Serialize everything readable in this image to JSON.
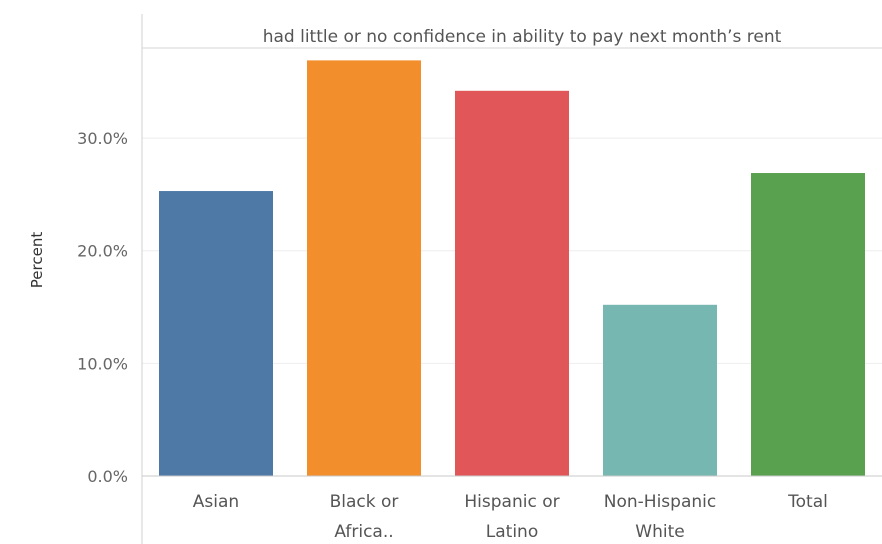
{
  "chart_data": {
    "type": "bar",
    "header": "had little or no confidence in ability to pay next month’s rent",
    "ylabel": "Percent",
    "ylim": [
      0,
      38
    ],
    "yticks": [
      {
        "value": 0,
        "label": "0.0%"
      },
      {
        "value": 10,
        "label": "10.0%"
      },
      {
        "value": 20,
        "label": "20.0%"
      },
      {
        "value": 30,
        "label": "30.0%"
      }
    ],
    "categories": [
      {
        "lines": [
          "Asian"
        ],
        "value": 25.3,
        "color": "#4e79a7"
      },
      {
        "lines": [
          "Black or",
          "Africa.."
        ],
        "value": 36.9,
        "color": "#f28e2b"
      },
      {
        "lines": [
          "Hispanic or",
          "Latino"
        ],
        "value": 34.2,
        "color": "#e15759"
      },
      {
        "lines": [
          "Non-Hispanic",
          "White"
        ],
        "value": 15.2,
        "color": "#76b7b2"
      },
      {
        "lines": [
          "Total"
        ],
        "value": 26.9,
        "color": "#59a14f"
      }
    ],
    "grid": true
  }
}
